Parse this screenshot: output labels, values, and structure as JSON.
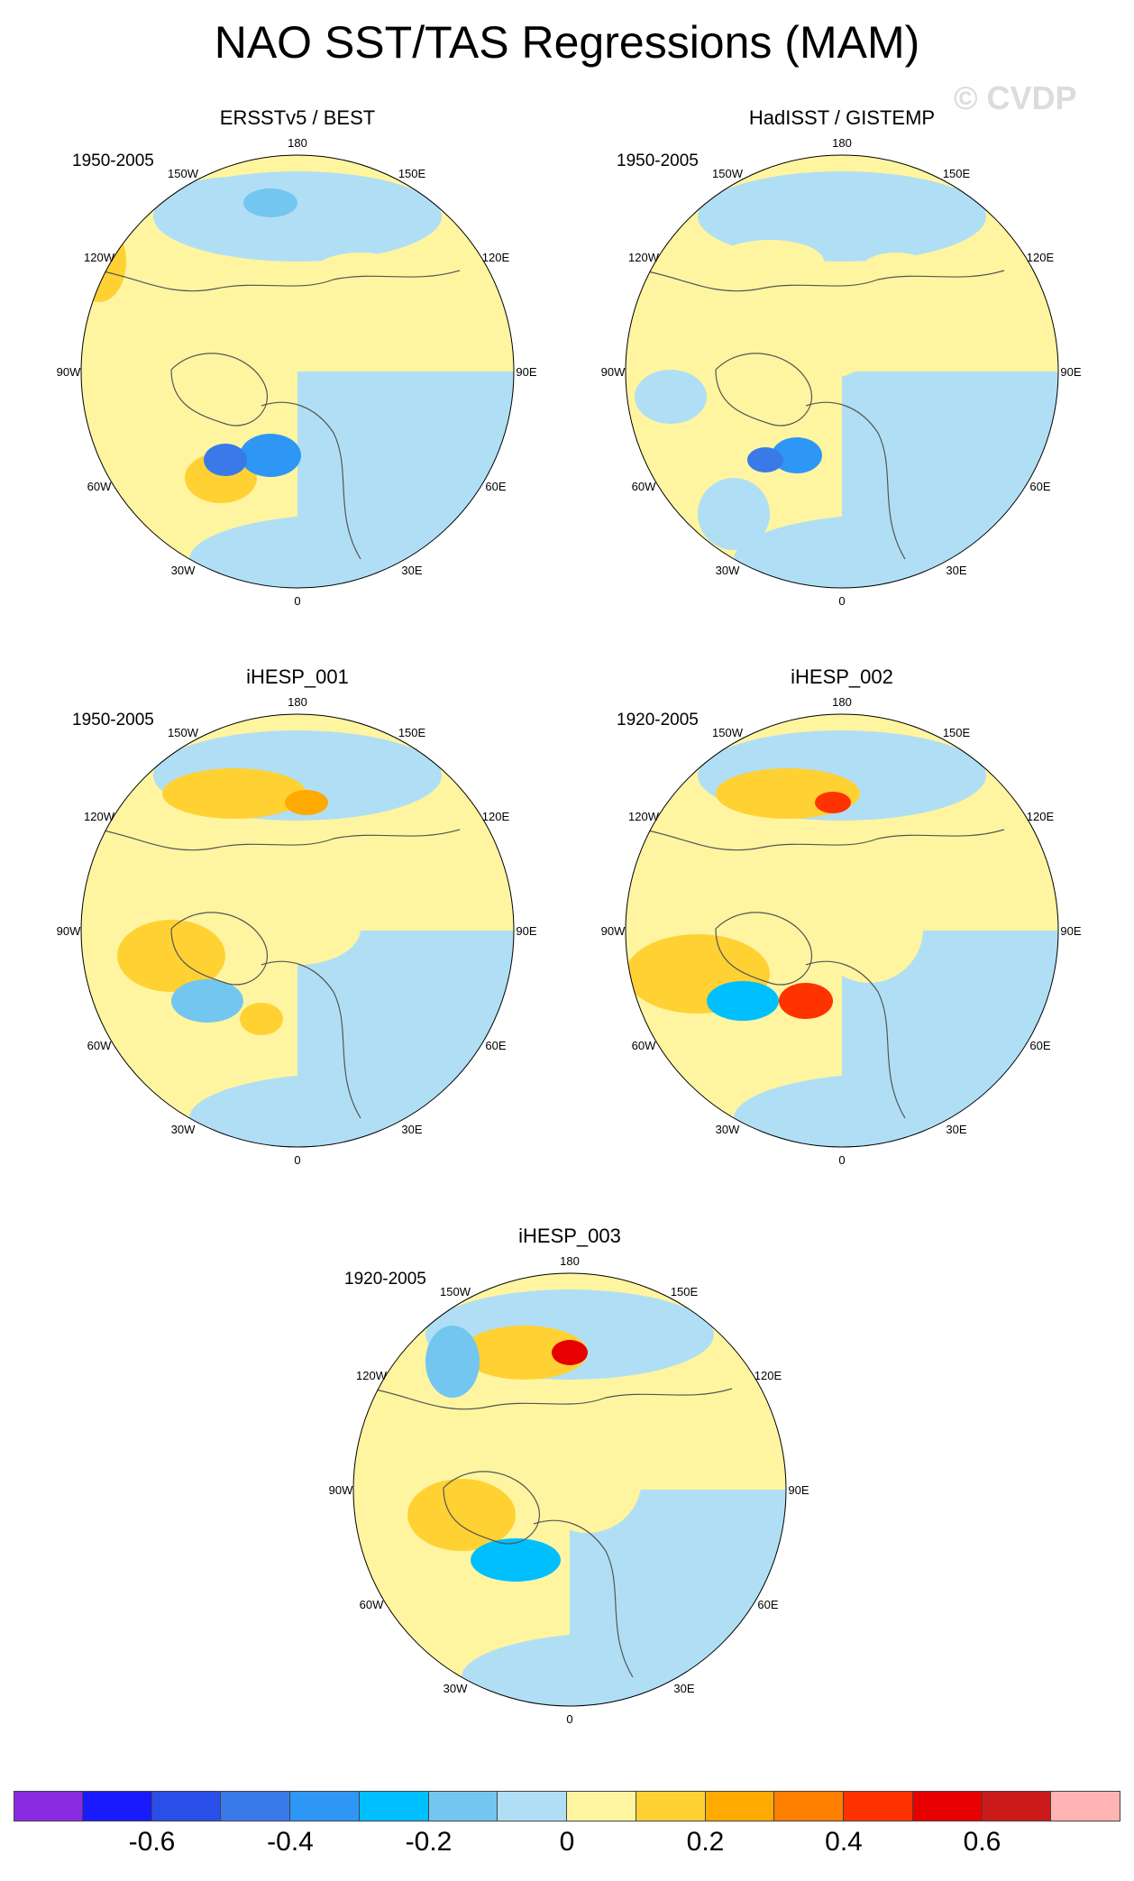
{
  "title": "NAO SST/TAS Regressions (MAM)",
  "watermark": "© CVDP",
  "longitude_labels": [
    "180",
    "150E",
    "120E",
    "90E",
    "60E",
    "30E",
    "0",
    "30W",
    "60W",
    "90W",
    "120W",
    "150W"
  ],
  "panels": [
    {
      "title": "ERSSTv5 / BEST",
      "period": "1950-2005"
    },
    {
      "title": "HadISST / GISTEMP",
      "period": "1950-2005"
    },
    {
      "title": "iHESP_001",
      "period": "1950-2005"
    },
    {
      "title": "iHESP_002",
      "period": "1920-2005"
    },
    {
      "title": "iHESP_003",
      "period": "1920-2005"
    }
  ],
  "colorbar": {
    "colors": [
      "#8a2be2",
      "#1a1aff",
      "#2a4fe8",
      "#3a7ae8",
      "#2e97f5",
      "#00bfff",
      "#73c6f0",
      "#b0dff5",
      "#fff5a0",
      "#ffd133",
      "#ffaa00",
      "#ff7f00",
      "#ff3300",
      "#e60000",
      "#cc1a1a",
      "#ffb3b3"
    ],
    "labels": [
      "-0.6",
      "-0.4",
      "-0.2",
      "0",
      "0.2",
      "0.4",
      "0.6"
    ],
    "label_positions": [
      -0.6,
      -0.4,
      -0.2,
      0,
      0.2,
      0.4,
      0.6
    ],
    "min": -0.8,
    "max": 0.8
  }
}
